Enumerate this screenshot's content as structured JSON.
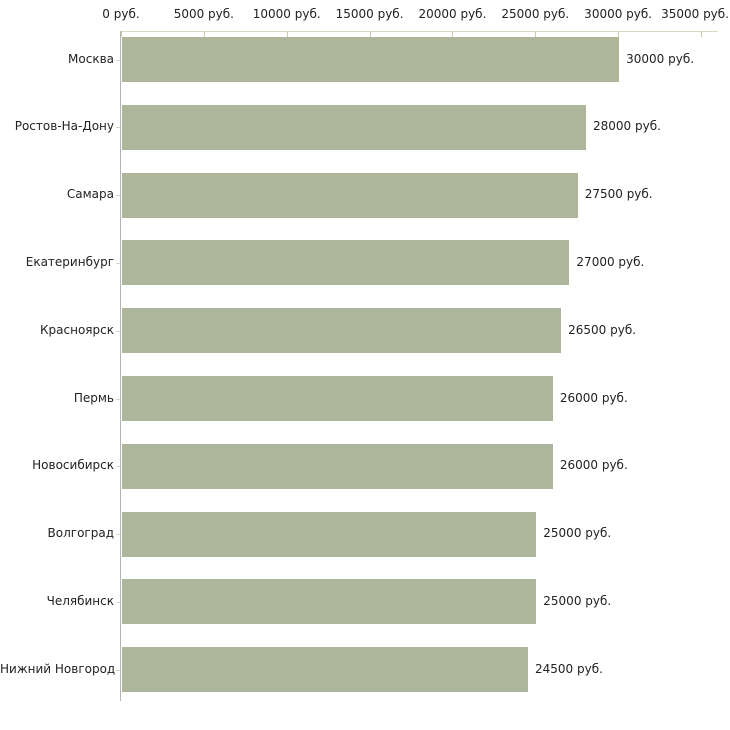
{
  "chart_data": {
    "type": "bar",
    "orientation": "horizontal",
    "title": "",
    "xlabel": "",
    "ylabel": "",
    "unit": "руб.",
    "xlim": [
      0,
      35000
    ],
    "grid": "off",
    "legend": "none",
    "categories": [
      "Москва",
      "Ростов-На-Дону",
      "Самара",
      "Екатеринбург",
      "Красноярск",
      "Пермь",
      "Новосибирск",
      "Волгоград",
      "Челябинск",
      "Нижний Новгород"
    ],
    "values": [
      30000,
      28000,
      27500,
      27000,
      26500,
      26000,
      26000,
      25000,
      25000,
      24500
    ],
    "value_labels": [
      "30000 руб.",
      "28000 руб.",
      "27500 руб.",
      "27000 руб.",
      "26500 руб.",
      "26000 руб.",
      "26000 руб.",
      "25000 руб.",
      "25000 руб.",
      "24500 руб."
    ],
    "x_ticks": [
      0,
      5000,
      10000,
      15000,
      20000,
      25000,
      30000,
      35000
    ],
    "x_tick_labels": [
      "0 руб.",
      "5000 руб.",
      "10000 руб.",
      "15000 руб.",
      "20000 руб.",
      "25000 руб.",
      "30000 руб.",
      "35000 руб."
    ],
    "colors": {
      "bar": "#adb59b",
      "x_axis_line": "#d8dbc0",
      "x_tick": "#c9cda5",
      "y_axis_line": "#b4b4b4",
      "row_tick": "#d8dbc0",
      "text": "#222222",
      "background": "#ffffff"
    }
  }
}
